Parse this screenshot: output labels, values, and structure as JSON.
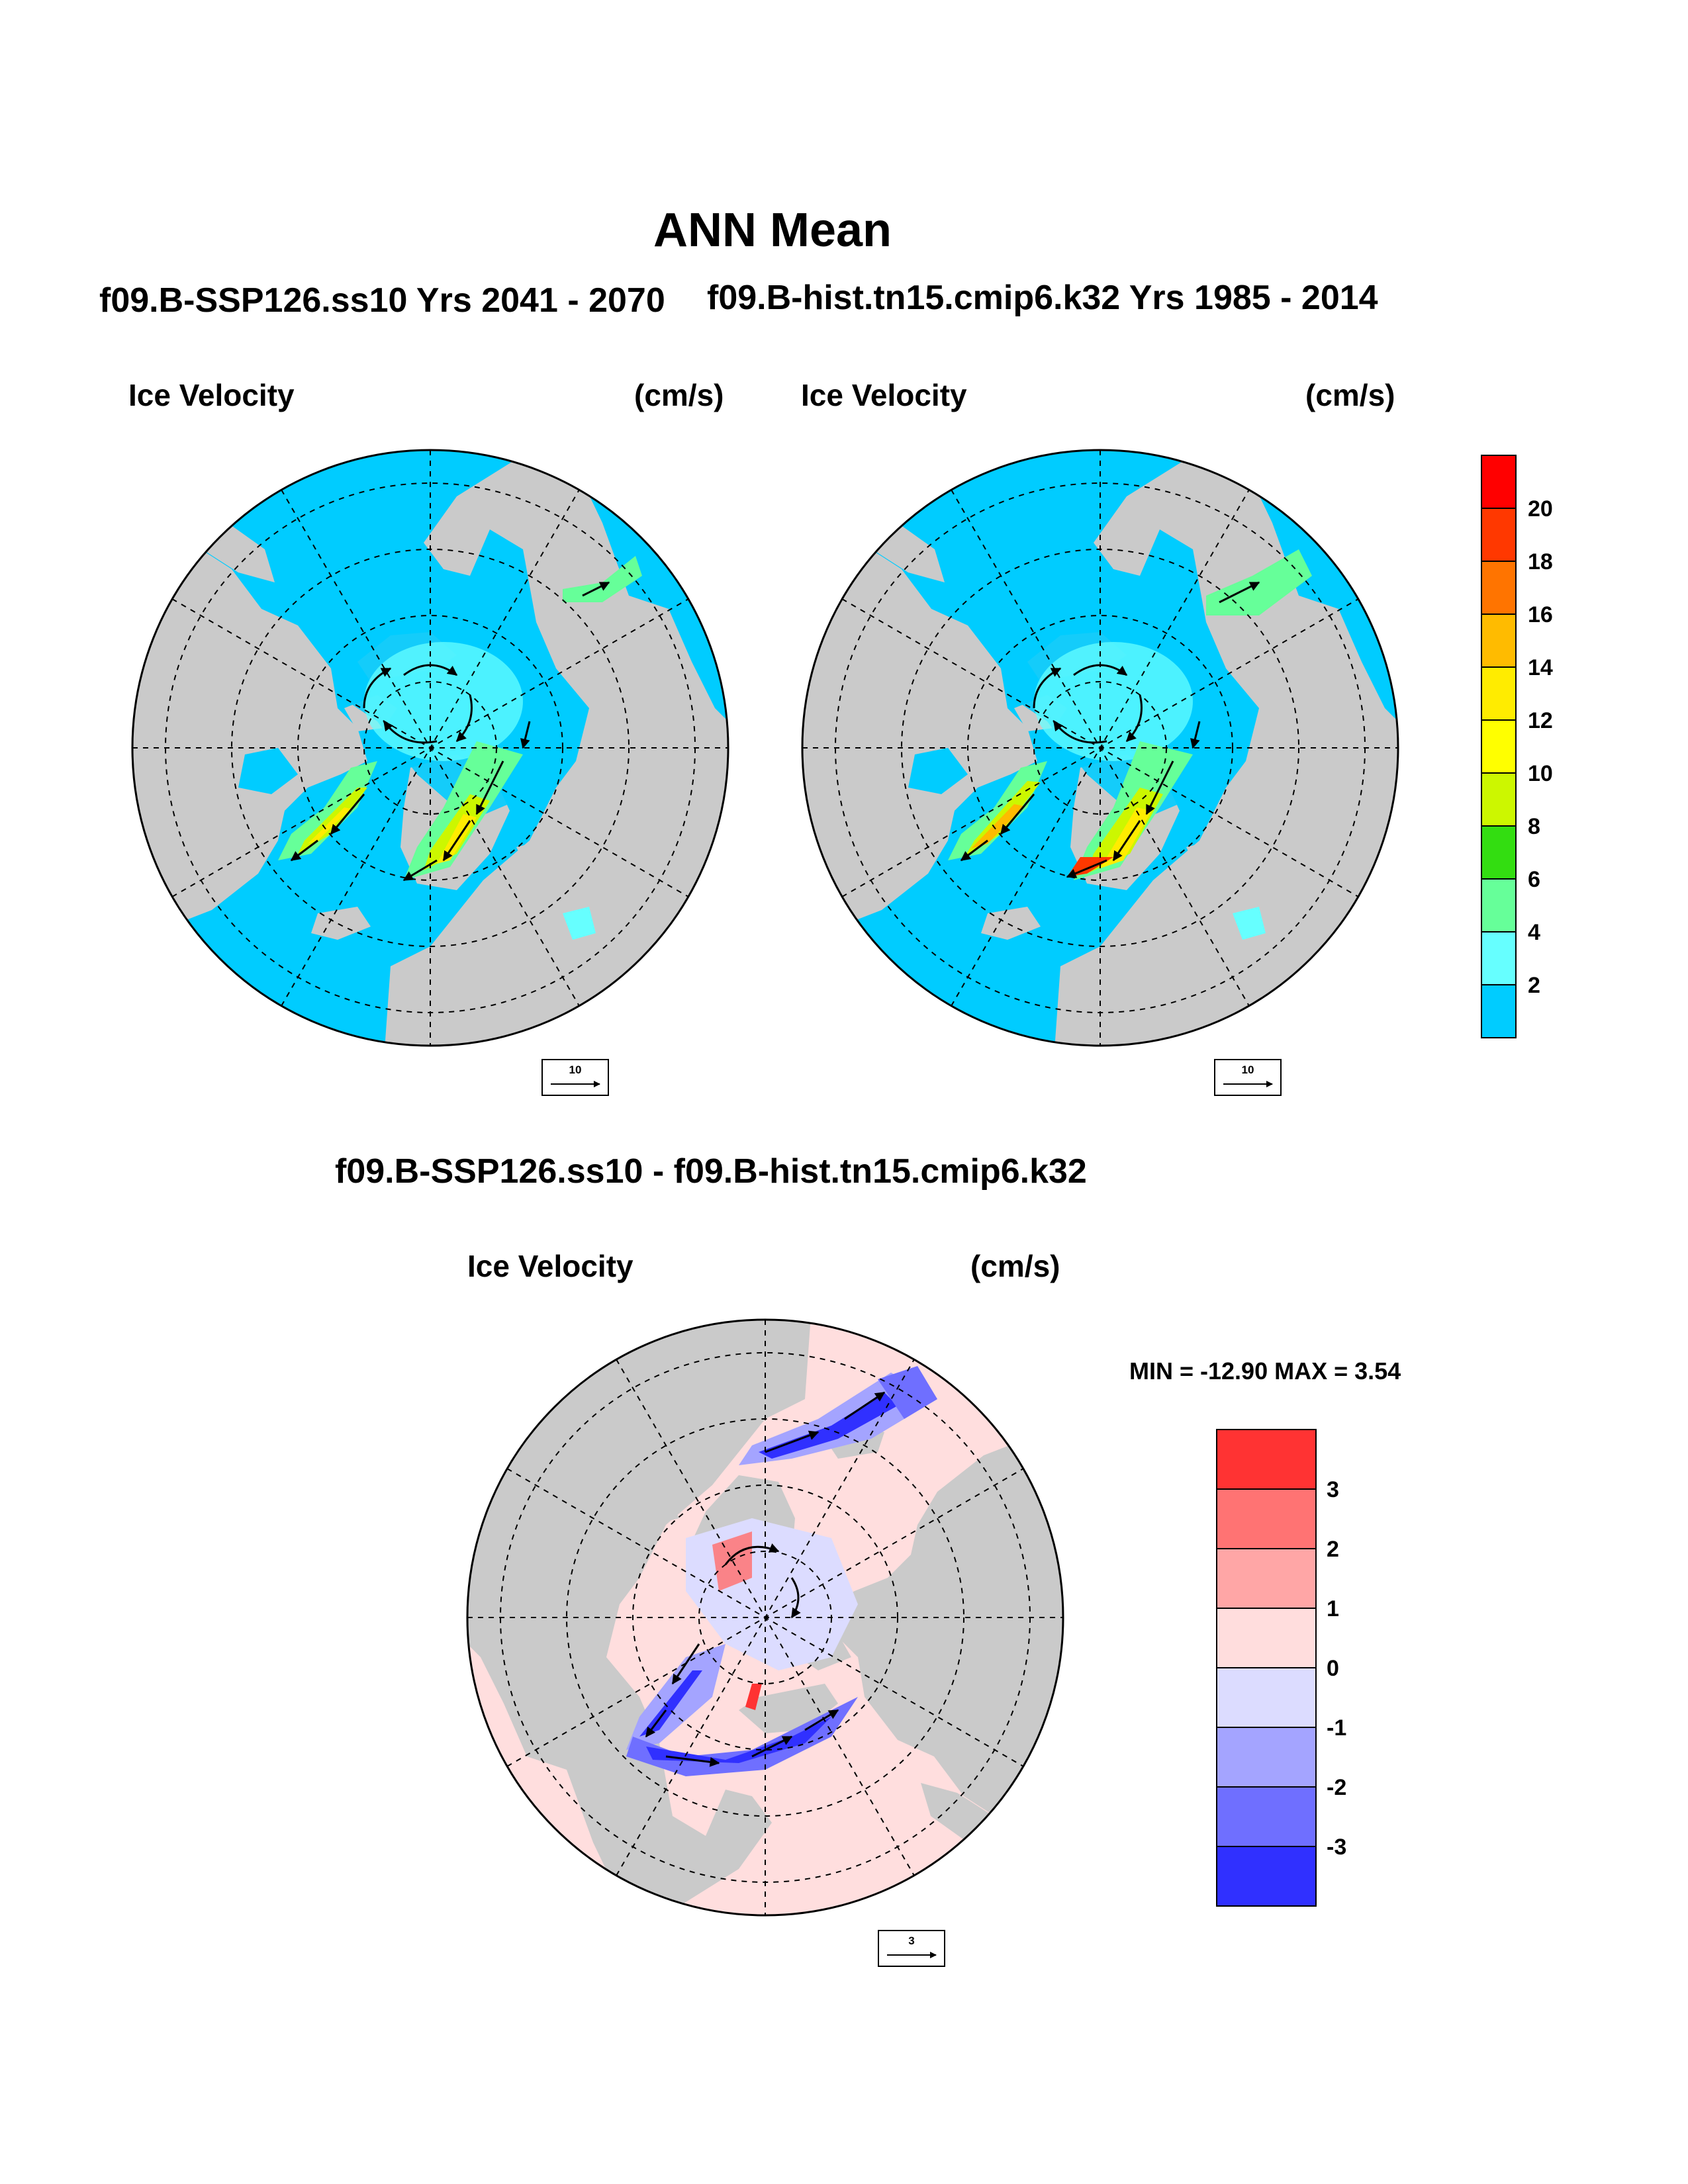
{
  "title": "ANN Mean",
  "panels": [
    {
      "id": "ssp126",
      "case": "f09.B-SSP126.ss10  Yrs 2041 - 2070",
      "variable": "Ice Velocity",
      "units": "(cm/s)",
      "ref_vector": "10"
    },
    {
      "id": "hist",
      "case": "f09.B-hist.tn15.cmip6.k32  Yrs 1985 - 2014",
      "variable": "Ice Velocity",
      "units": "(cm/s)",
      "ref_vector": "10"
    },
    {
      "id": "diff",
      "case": "f09.B-SSP126.ss10 - f09.B-hist.tn15.cmip6.k32",
      "variable": "Ice Velocity",
      "units": "(cm/s)",
      "ref_vector": "3"
    }
  ],
  "diff_stats": "MIN = -12.90 MAX =   3.54",
  "colorbar_top": {
    "labels": [
      "20",
      "18",
      "16",
      "14",
      "12",
      "10",
      "8",
      "6",
      "4",
      "2"
    ],
    "colors": [
      "#ff0000",
      "#ff3800",
      "#ff7400",
      "#ffbb00",
      "#ffec00",
      "#ffff00",
      "#ccf700",
      "#33dd11",
      "#66ff99",
      "#66ffff",
      "#00ccff"
    ]
  },
  "colorbar_diff": {
    "labels": [
      "3",
      "2",
      "1",
      "0",
      "-1",
      "-2",
      "-3"
    ],
    "colors": [
      "#ff3333",
      "#ff7373",
      "#ffa6a6",
      "#ffdddd",
      "#dcdcff",
      "#a4a4ff",
      "#6f6fff",
      "#3030ff"
    ]
  },
  "colors": {
    "land": "#cacaca",
    "open_ocean": "#00ccff",
    "diff_background": "#ffdede",
    "coast": "#ffffff"
  }
}
